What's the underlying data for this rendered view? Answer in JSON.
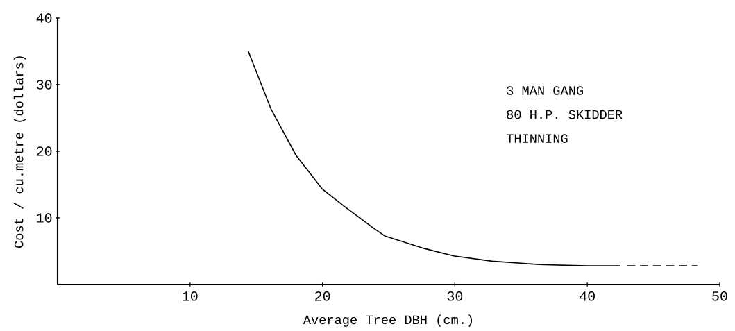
{
  "chart_data": {
    "type": "line",
    "xlabel": "Average Tree DBH (cm.)",
    "ylabel": "Cost / cu.metre (dollars)",
    "xlim": [
      0,
      50
    ],
    "ylim": [
      0,
      40
    ],
    "xticks": [
      10,
      20,
      30,
      40,
      50
    ],
    "yticks": [
      10,
      20,
      30,
      40
    ],
    "grid": false,
    "annotations": [
      "3 MAN GANG",
      "80 H.P. SKIDDER",
      "THINNING"
    ],
    "series": [
      {
        "color": "#000000",
        "line_style": "solid",
        "x": [
          14.4,
          16.1,
          18.0,
          20.0,
          21.8,
          23.9,
          24.7,
          27.7,
          29.9,
          32.8,
          36.4,
          40.0,
          42.5
        ],
        "values": [
          35,
          26.4,
          19.4,
          14.3,
          11.5,
          8.4,
          7.3,
          5.4,
          4.3,
          3.5,
          3.0,
          2.8,
          2.8
        ]
      },
      {
        "color": "#000000",
        "line_style": "dashed",
        "x": [
          43.0,
          48.3
        ],
        "values": [
          2.8,
          2.8
        ]
      }
    ]
  }
}
